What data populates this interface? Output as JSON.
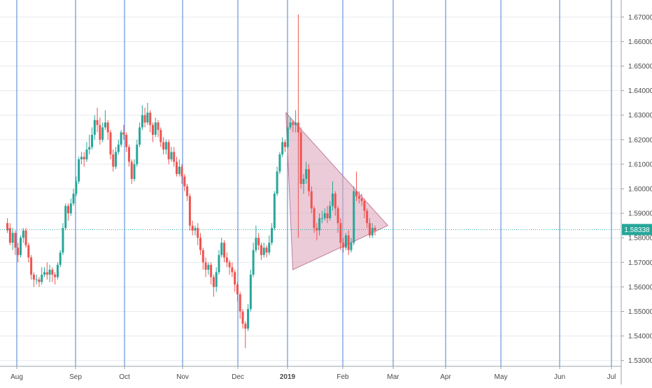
{
  "chart_data": {
    "type": "candlestick",
    "colors": {
      "up": "#26a69a",
      "down": "#ef5350",
      "vertical_grid": "#4a7fd4",
      "horizontal_grid": "#e6e9ee",
      "price_line": "#26a69a",
      "triangle_fill": "#dba0b6",
      "triangle_stroke": "#c27c99",
      "axis_text": "#4a4a4a",
      "price_label_bg": "#26a69a"
    },
    "grid": true,
    "time_labels": [
      "Aug",
      "Sep",
      "Oct",
      "Nov",
      "Dec",
      "2019",
      "Feb",
      "Mar",
      "Apr",
      "May",
      "Jun",
      "Jul"
    ],
    "price_ticks": [
      "1.67000",
      "1.66000",
      "1.65000",
      "1.64000",
      "1.63000",
      "1.62000",
      "1.61000",
      "1.60000",
      "1.59000",
      "1.58000",
      "1.57000",
      "1.56000",
      "1.55000",
      "1.54000",
      "1.53000"
    ],
    "price_range": [
      1.526,
      1.676
    ],
    "current_price": "1.58338",
    "pattern": {
      "type": "triangle",
      "vertices": [
        {
          "date": "2018-12-31",
          "price": 1.631
        },
        {
          "date": "2019-02-26",
          "price": 1.585
        },
        {
          "date": "2019-01-04",
          "price": 1.567
        }
      ]
    },
    "candles": [
      [
        1.586,
        1.583,
        1.582,
        1.588
      ],
      [
        1.584,
        1.578,
        1.577,
        1.586
      ],
      [
        1.578,
        1.582,
        1.575,
        1.584
      ],
      [
        1.582,
        1.576,
        1.573,
        1.583
      ],
      [
        1.576,
        1.573,
        1.57,
        1.578
      ],
      [
        1.573,
        1.58,
        1.572,
        1.581
      ],
      [
        1.58,
        1.583,
        1.578,
        1.584
      ],
      [
        1.583,
        1.577,
        1.576,
        1.584
      ],
      [
        1.577,
        1.572,
        1.57,
        1.578
      ],
      [
        1.572,
        1.565,
        1.563,
        1.573
      ],
      [
        1.565,
        1.563,
        1.56,
        1.566
      ],
      [
        1.563,
        1.563,
        1.561,
        1.565
      ],
      [
        1.563,
        1.562,
        1.56,
        1.564
      ],
      [
        1.562,
        1.565,
        1.561,
        1.568
      ],
      [
        1.565,
        1.566,
        1.564,
        1.568
      ],
      [
        1.566,
        1.565,
        1.563,
        1.57
      ],
      [
        1.565,
        1.567,
        1.562,
        1.569
      ],
      [
        1.567,
        1.565,
        1.562,
        1.568
      ],
      [
        1.565,
        1.564,
        1.561,
        1.566
      ],
      [
        1.564,
        1.569,
        1.563,
        1.57
      ],
      [
        1.569,
        1.574,
        1.568,
        1.575
      ],
      [
        1.574,
        1.584,
        1.573,
        1.586
      ],
      [
        1.584,
        1.593,
        1.583,
        1.594
      ],
      [
        1.593,
        1.59,
        1.587,
        1.594
      ],
      [
        1.59,
        1.594,
        1.589,
        1.596
      ],
      [
        1.594,
        1.598,
        1.593,
        1.6
      ],
      [
        1.598,
        1.603,
        1.597,
        1.605
      ],
      [
        1.603,
        1.612,
        1.602,
        1.613
      ],
      [
        1.612,
        1.613,
        1.61,
        1.615
      ],
      [
        1.613,
        1.612,
        1.609,
        1.615
      ],
      [
        1.612,
        1.616,
        1.611,
        1.619
      ],
      [
        1.616,
        1.617,
        1.614,
        1.622
      ],
      [
        1.617,
        1.622,
        1.616,
        1.625
      ],
      [
        1.622,
        1.628,
        1.62,
        1.63
      ],
      [
        1.628,
        1.626,
        1.623,
        1.633
      ],
      [
        1.626,
        1.62,
        1.618,
        1.629
      ],
      [
        1.62,
        1.625,
        1.619,
        1.627
      ],
      [
        1.625,
        1.627,
        1.624,
        1.632
      ],
      [
        1.627,
        1.623,
        1.62,
        1.628
      ],
      [
        1.623,
        1.614,
        1.612,
        1.624
      ],
      [
        1.614,
        1.609,
        1.607,
        1.616
      ],
      [
        1.609,
        1.615,
        1.608,
        1.617
      ],
      [
        1.615,
        1.618,
        1.614,
        1.62
      ],
      [
        1.618,
        1.623,
        1.617,
        1.624
      ],
      [
        1.623,
        1.622,
        1.62,
        1.626
      ],
      [
        1.622,
        1.617,
        1.615,
        1.623
      ],
      [
        1.617,
        1.611,
        1.609,
        1.618
      ],
      [
        1.611,
        1.604,
        1.602,
        1.612
      ],
      [
        1.604,
        1.61,
        1.603,
        1.612
      ],
      [
        1.61,
        1.618,
        1.609,
        1.62
      ],
      [
        1.618,
        1.625,
        1.617,
        1.627
      ],
      [
        1.625,
        1.63,
        1.624,
        1.634
      ],
      [
        1.63,
        1.627,
        1.625,
        1.633
      ],
      [
        1.627,
        1.631,
        1.626,
        1.635
      ],
      [
        1.631,
        1.626,
        1.623,
        1.632
      ],
      [
        1.626,
        1.622,
        1.619,
        1.627
      ],
      [
        1.622,
        1.627,
        1.621,
        1.629
      ],
      [
        1.627,
        1.624,
        1.621,
        1.628
      ],
      [
        1.624,
        1.619,
        1.617,
        1.625
      ],
      [
        1.619,
        1.616,
        1.614,
        1.621
      ],
      [
        1.616,
        1.619,
        1.614,
        1.62
      ],
      [
        1.619,
        1.612,
        1.61,
        1.62
      ],
      [
        1.612,
        1.615,
        1.611,
        1.617
      ],
      [
        1.615,
        1.611,
        1.609,
        1.617
      ],
      [
        1.611,
        1.606,
        1.605,
        1.613
      ],
      [
        1.606,
        1.609,
        1.605,
        1.612
      ],
      [
        1.609,
        1.605,
        1.602,
        1.61
      ],
      [
        1.605,
        1.601,
        1.599,
        1.606
      ],
      [
        1.601,
        1.597,
        1.595,
        1.602
      ],
      [
        1.597,
        1.585,
        1.583,
        1.598
      ],
      [
        1.585,
        1.583,
        1.581,
        1.587
      ],
      [
        1.583,
        1.584,
        1.581,
        1.585
      ],
      [
        1.584,
        1.58,
        1.577,
        1.586
      ],
      [
        1.58,
        1.575,
        1.573,
        1.582
      ],
      [
        1.575,
        1.57,
        1.567,
        1.576
      ],
      [
        1.57,
        1.567,
        1.564,
        1.572
      ],
      [
        1.567,
        1.569,
        1.565,
        1.57
      ],
      [
        1.569,
        1.564,
        1.561,
        1.57
      ],
      [
        1.564,
        1.56,
        1.556,
        1.565
      ],
      [
        1.56,
        1.566,
        1.558,
        1.568
      ],
      [
        1.566,
        1.573,
        1.565,
        1.575
      ],
      [
        1.573,
        1.578,
        1.572,
        1.58
      ],
      [
        1.578,
        1.572,
        1.57,
        1.579
      ],
      [
        1.572,
        1.57,
        1.568,
        1.574
      ],
      [
        1.57,
        1.568,
        1.565,
        1.571
      ],
      [
        1.568,
        1.566,
        1.564,
        1.57
      ],
      [
        1.566,
        1.561,
        1.558,
        1.567
      ],
      [
        1.561,
        1.557,
        1.554,
        1.562
      ],
      [
        1.557,
        1.55,
        1.547,
        1.558
      ],
      [
        1.55,
        1.545,
        1.543,
        1.551
      ],
      [
        1.545,
        1.543,
        1.535,
        1.546
      ],
      [
        1.543,
        1.551,
        1.542,
        1.553
      ],
      [
        1.551,
        1.565,
        1.55,
        1.567
      ],
      [
        1.565,
        1.575,
        1.564,
        1.578
      ],
      [
        1.575,
        1.58,
        1.574,
        1.585
      ],
      [
        1.58,
        1.577,
        1.575,
        1.582
      ],
      [
        1.577,
        1.573,
        1.571,
        1.578
      ],
      [
        1.573,
        1.576,
        1.572,
        1.578
      ],
      [
        1.576,
        1.574,
        1.572,
        1.577
      ],
      [
        1.574,
        1.578,
        1.573,
        1.581
      ],
      [
        1.578,
        1.584,
        1.577,
        1.586
      ],
      [
        1.584,
        1.598,
        1.583,
        1.599
      ],
      [
        1.598,
        1.607,
        1.597,
        1.609
      ],
      [
        1.607,
        1.614,
        1.606,
        1.615
      ],
      [
        1.614,
        1.619,
        1.613,
        1.621
      ],
      [
        1.619,
        1.617,
        1.615,
        1.62
      ],
      [
        1.617,
        1.625,
        1.616,
        1.631
      ],
      [
        1.625,
        1.627,
        1.624,
        1.629
      ],
      [
        1.627,
        1.626,
        1.623,
        1.628
      ],
      [
        1.626,
        1.627,
        1.623,
        1.632
      ],
      [
        1.627,
        1.623,
        1.58,
        1.671
      ],
      [
        1.623,
        1.602,
        1.6,
        1.625
      ],
      [
        1.602,
        1.604,
        1.598,
        1.606
      ],
      [
        1.604,
        1.608,
        1.602,
        1.611
      ],
      [
        1.608,
        1.599,
        1.597,
        1.61
      ],
      [
        1.599,
        1.592,
        1.59,
        1.601
      ],
      [
        1.592,
        1.584,
        1.582,
        1.593
      ],
      [
        1.584,
        1.583,
        1.579,
        1.586
      ],
      [
        1.583,
        1.588,
        1.581,
        1.59
      ],
      [
        1.588,
        1.588,
        1.586,
        1.591
      ],
      [
        1.588,
        1.59,
        1.587,
        1.592
      ],
      [
        1.59,
        1.588,
        1.586,
        1.593
      ],
      [
        1.588,
        1.593,
        1.587,
        1.595
      ],
      [
        1.593,
        1.598,
        1.591,
        1.603
      ],
      [
        1.598,
        1.592,
        1.589,
        1.599
      ],
      [
        1.592,
        1.586,
        1.582,
        1.593
      ],
      [
        1.586,
        1.578,
        1.575,
        1.588
      ],
      [
        1.578,
        1.576,
        1.574,
        1.58
      ],
      [
        1.576,
        1.581,
        1.575,
        1.582
      ],
      [
        1.581,
        1.575,
        1.573,
        1.583
      ],
      [
        1.575,
        1.578,
        1.574,
        1.58
      ],
      [
        1.578,
        1.599,
        1.577,
        1.601
      ],
      [
        1.599,
        1.597,
        1.595,
        1.607
      ],
      [
        1.597,
        1.596,
        1.594,
        1.599
      ],
      [
        1.596,
        1.595,
        1.593,
        1.598
      ],
      [
        1.595,
        1.591,
        1.588,
        1.596
      ],
      [
        1.591,
        1.586,
        1.584,
        1.592
      ],
      [
        1.586,
        1.581,
        1.58,
        1.588
      ],
      [
        1.581,
        1.584,
        1.58,
        1.586
      ],
      [
        1.584,
        1.583,
        1.581,
        1.585
      ]
    ]
  }
}
